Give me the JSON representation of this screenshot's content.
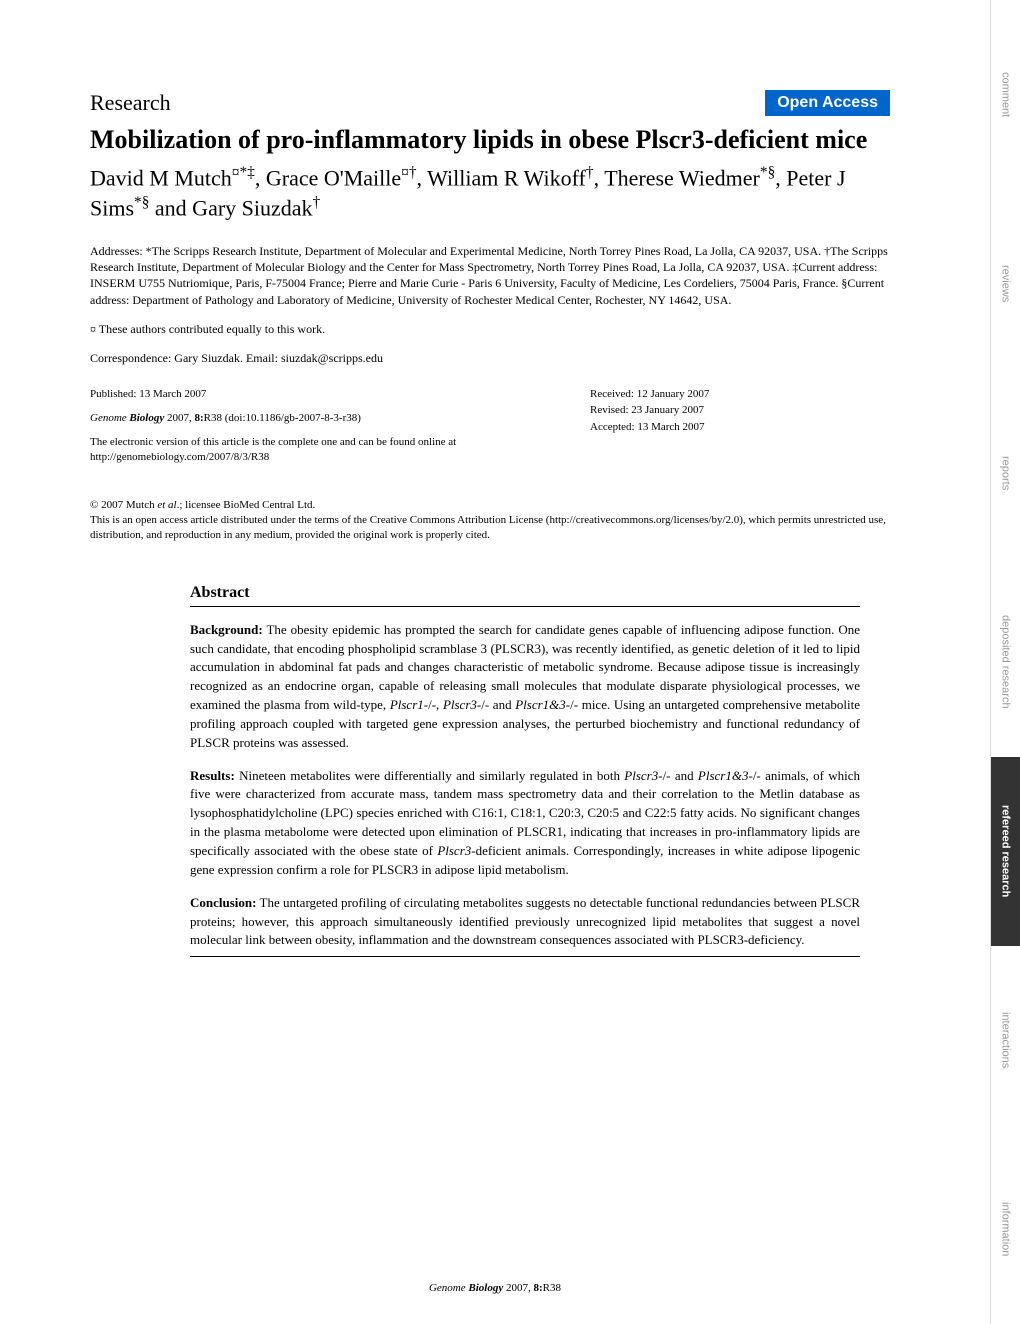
{
  "sidebar": {
    "items": [
      {
        "label": "comment",
        "active": false
      },
      {
        "label": "reviews",
        "active": false
      },
      {
        "label": "reports",
        "active": false
      },
      {
        "label": "deposited research",
        "active": false
      },
      {
        "label": "refereed research",
        "active": true
      },
      {
        "label": "interactions",
        "active": false
      },
      {
        "label": "information",
        "active": false
      }
    ]
  },
  "header": {
    "research_label": "Research",
    "open_access": "Open Access"
  },
  "title": "Mobilization of pro-inflammatory lipids in obese Plscr3-deficient mice",
  "authors_html": "David M Mutch<sup>¤*‡</sup>, Grace O'Maille<sup>¤†</sup>, William R Wikoff<sup>†</sup>, Therese Wiedmer<sup>*§</sup>, Peter J Sims<sup>*§</sup> and Gary Siuzdak<sup>†</sup>",
  "addresses": "Addresses: *The Scripps Research Institute, Department of Molecular and Experimental Medicine, North Torrey Pines Road, La Jolla, CA 92037, USA. †The Scripps Research Institute, Department of Molecular Biology and the Center for Mass Spectrometry, North Torrey Pines Road, La Jolla, CA 92037, USA. ‡Current address: INSERM U755 Nutriomique, Paris, F-75004 France; Pierre and Marie Curie - Paris 6 University, Faculty of Medicine, Les Cordeliers, 75004 Paris, France. §Current address: Department of Pathology and Laboratory of Medicine, University of Rochester Medical Center, Rochester, NY 14642, USA.",
  "contributed": "¤ These authors contributed equally to this work.",
  "correspondence": "Correspondence: Gary Siuzdak. Email: siuzdak@scripps.edu",
  "pub_info": {
    "published": "Published: 13 March 2007",
    "received": "Received: 12 January 2007",
    "revised": "Revised: 23 January 2007",
    "accepted": "Accepted: 13 March 2007",
    "journal_prefix": "Genome ",
    "journal_bold": "Biology",
    "journal_suffix": " 2007, ",
    "volume": "8:",
    "pages": "R38 (doi:10.1186/gb-2007-8-3-r38)",
    "electronic": "The electronic version of this article is the complete one and can be found online at http://genomebiology.com/2007/8/3/R38"
  },
  "copyright": {
    "line1_prefix": "© 2007 Mutch ",
    "line1_italic": "et al",
    "line1_suffix": ".; licensee BioMed Central Ltd.",
    "line2": "This is an open access article distributed under the terms of the Creative Commons Attribution License (http://creativecommons.org/licenses/by/2.0), which permits unrestricted use, distribution, and reproduction in any medium, provided the original work is properly cited."
  },
  "abstract": {
    "title": "Abstract",
    "background_label": "Background:",
    "background_text": " The obesity epidemic has prompted the search for candidate genes capable of influencing adipose function. One such candidate, that encoding phospholipid scramblase 3 (PLSCR3), was recently identified, as genetic deletion of it led to lipid accumulation in abdominal fat pads and changes characteristic of metabolic syndrome. Because adipose tissue is increasingly recognized as an endocrine organ, capable of releasing small molecules that modulate disparate physiological processes, we examined the plasma from wild-type, ",
    "background_italic1": "Plscr1",
    "background_mid1": "-/-, ",
    "background_italic2": "Plscr3",
    "background_mid2": "-/- and ",
    "background_italic3": "Plscr1&3",
    "background_end": "-/- mice. Using an untargeted comprehensive metabolite profiling approach coupled with targeted gene expression analyses, the perturbed biochemistry and functional redundancy of PLSCR proteins was assessed.",
    "results_label": "Results:",
    "results_text1": " Nineteen metabolites were differentially and similarly regulated in both ",
    "results_italic1": "Plscr3",
    "results_text2": "-/- and ",
    "results_italic2": "Plscr1&3",
    "results_text3": "-/- animals, of which five were characterized from accurate mass, tandem mass spectrometry data and their correlation to the Metlin database as lysophosphatidylcholine (LPC) species enriched with C16:1, C18:1, C20:3, C20:5 and C22:5 fatty acids. No significant changes in the plasma metabolome were detected upon elimination of PLSCR1, indicating that increases in pro-inflammatory lipids are specifically associated with the obese state of ",
    "results_italic3": "Plscr3",
    "results_text4": "-deficient animals. Correspondingly, increases in white adipose lipogenic gene expression confirm a role for PLSCR3 in adipose lipid metabolism.",
    "conclusion_label": "Conclusion:",
    "conclusion_text": " The untargeted profiling of circulating metabolites suggests no detectable functional redundancies between PLSCR proteins; however, this approach simultaneously identified previously unrecognized lipid metabolites that suggest a novel molecular link between obesity, inflammation and the downstream consequences associated with PLSCR3-deficiency."
  },
  "footer": {
    "journal_prefix": "Genome ",
    "journal_bold": "Biology",
    "journal_suffix": " 2007, ",
    "volume": "8:",
    "pages": "R38"
  }
}
